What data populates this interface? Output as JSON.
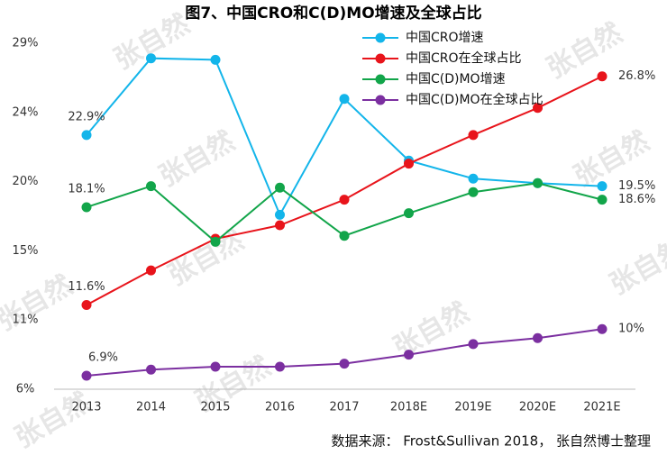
{
  "chart_data": {
    "type": "line",
    "title": "图7、中国CRO和C(D)MO增速及全球占比",
    "categories": [
      "2013",
      "2014",
      "2015",
      "2016",
      "2017",
      "2018E",
      "2019E",
      "2020E",
      "2021E"
    ],
    "series": [
      {
        "name": "中国CRO增速",
        "color": "#13b5ea",
        "values": [
          22.9,
          28.0,
          27.9,
          17.6,
          25.3,
          21.2,
          20.0,
          19.7,
          19.5
        ],
        "value_labels": [
          "22.9%",
          null,
          null,
          null,
          null,
          null,
          null,
          null,
          "19.5%"
        ]
      },
      {
        "name": "中国CRO在全球占比",
        "color": "#e8141b",
        "values": [
          11.6,
          13.9,
          16.0,
          16.9,
          18.6,
          21.0,
          22.9,
          24.7,
          26.8
        ],
        "value_labels": [
          "11.6%",
          null,
          null,
          null,
          null,
          null,
          null,
          null,
          "26.8%"
        ]
      },
      {
        "name": "中国C(D)MO增速",
        "color": "#12a54a",
        "values": [
          18.1,
          19.5,
          15.8,
          19.4,
          16.2,
          17.7,
          19.1,
          19.7,
          18.6
        ],
        "value_labels": [
          "18.1%",
          null,
          null,
          null,
          null,
          null,
          null,
          null,
          "18.6%"
        ]
      },
      {
        "name": "中国C(D)MO在全球占比",
        "color": "#7b2fa0",
        "values": [
          6.9,
          7.3,
          7.5,
          7.5,
          7.7,
          8.3,
          9.0,
          9.4,
          10
        ],
        "value_labels": [
          "6.9%",
          null,
          null,
          null,
          null,
          null,
          null,
          null,
          "10%"
        ]
      }
    ],
    "ylim": [
      6,
      29
    ],
    "yticks": [
      {
        "value": 6,
        "label": "6%"
      },
      {
        "value": 10.6,
        "label": "11%"
      },
      {
        "value": 15.2,
        "label": "15%"
      },
      {
        "value": 19.8,
        "label": "20%"
      },
      {
        "value": 24.4,
        "label": "24%"
      },
      {
        "value": 29,
        "label": "29%"
      }
    ],
    "grid": false,
    "legend": "top-right",
    "source": "数据来源： Frost&Sullivan 2018， 张自然博士整理",
    "watermark": "张自然"
  }
}
